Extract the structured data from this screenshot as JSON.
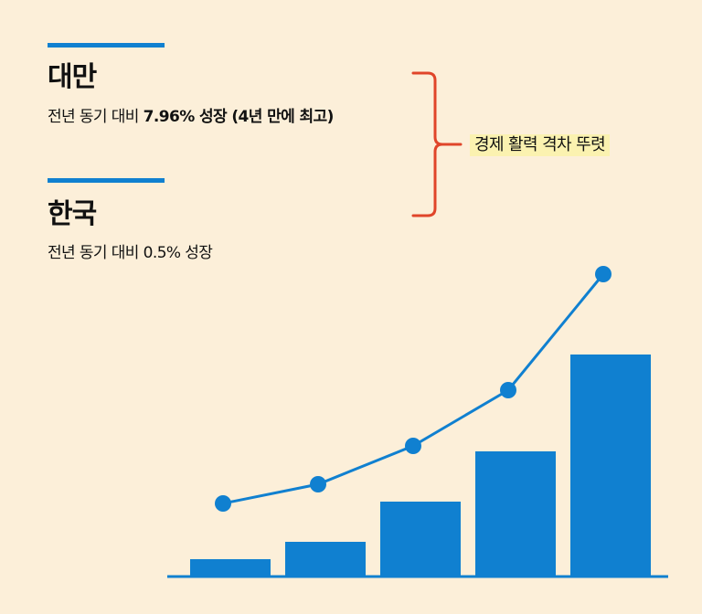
{
  "taiwan": {
    "name": "대만",
    "detail_prefix": "전년 동기 대비",
    "detail_emphasis": "7.96% 성장 (4년 만에 최고)"
  },
  "korea": {
    "name": "한국",
    "detail_prefix": "전년 동기 대비",
    "detail_emphasis": "0.5% 성장"
  },
  "conclusion": "경제 활력 격차 뚜렷",
  "colors": {
    "background": "#fcefd9",
    "accent_blue": "#1080d0",
    "brace_orange": "#e0452a",
    "highlight": "#fbf2b0",
    "text": "#111111"
  },
  "chart_data": {
    "type": "bar",
    "categories": [
      "",
      "",
      "",
      "",
      ""
    ],
    "values": [
      18,
      37,
      81,
      136,
      242
    ],
    "line_values": [
      79,
      100,
      142,
      203,
      330
    ],
    "ylim": [
      0,
      360
    ],
    "grid": false,
    "legend": "none",
    "title": "",
    "xlabel": "",
    "ylabel": ""
  }
}
